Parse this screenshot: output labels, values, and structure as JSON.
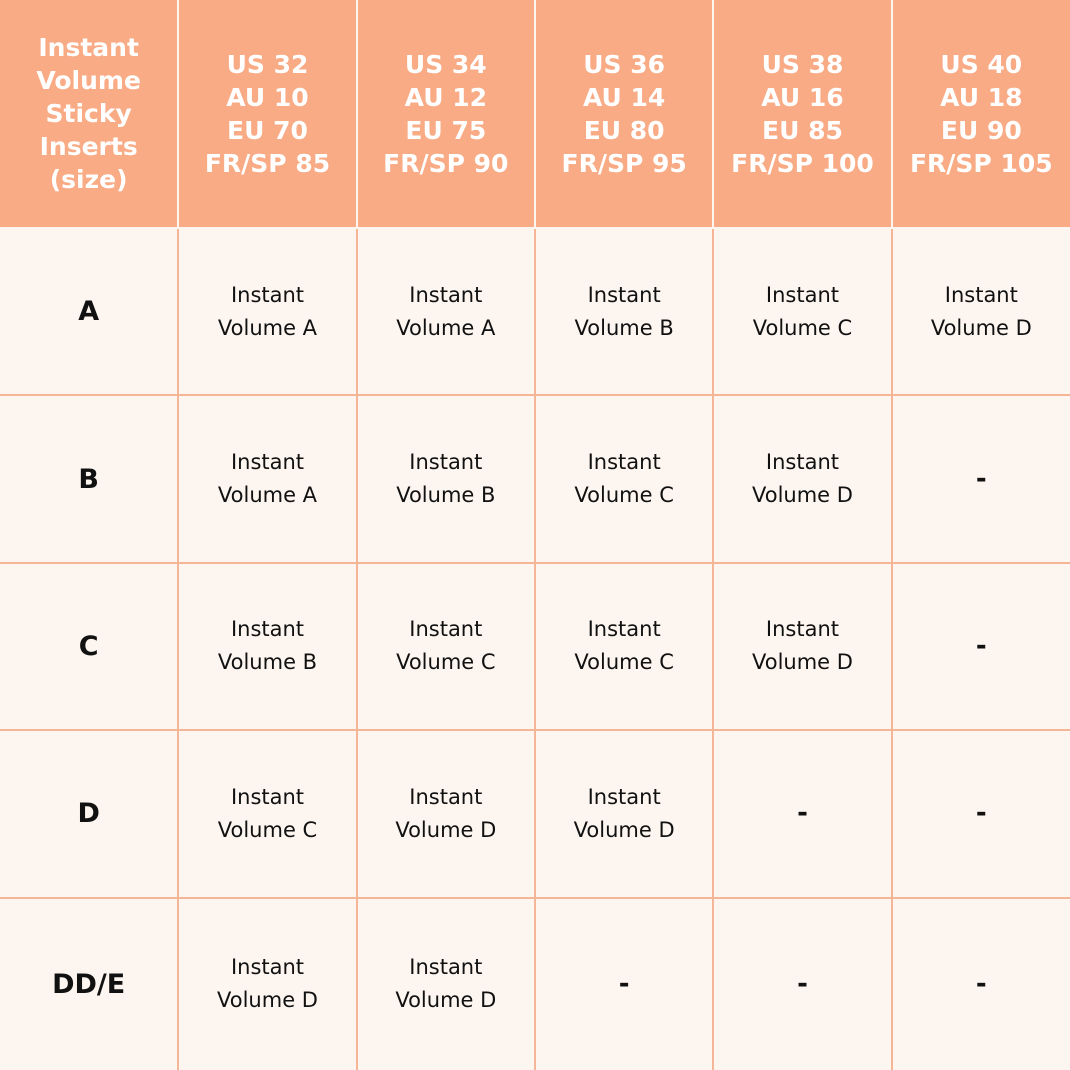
{
  "table": {
    "corner_header": [
      "Instant",
      "Volume",
      "Sticky",
      "Inserts",
      "(size)"
    ],
    "columns": [
      [
        "US 32",
        "AU 10",
        "EU 70",
        "FR/SP 85"
      ],
      [
        "US 34",
        "AU 12",
        "EU 75",
        "FR/SP 90"
      ],
      [
        "US 36",
        "AU 14",
        "EU 80",
        "FR/SP 95"
      ],
      [
        "US 38",
        "AU 16",
        "EU 85",
        "FR/SP 100"
      ],
      [
        "US 40",
        "AU 18",
        "EU 90",
        "FR/SP 105"
      ]
    ],
    "rows": [
      {
        "label": "A",
        "cells": [
          "Instant\nVolume A",
          "Instant\nVolume A",
          "Instant\nVolume B",
          "Instant\nVolume C",
          "Instant\nVolume D"
        ]
      },
      {
        "label": "B",
        "cells": [
          "Instant\nVolume A",
          "Instant\nVolume B",
          "Instant\nVolume C",
          "Instant\nVolume D",
          "-"
        ]
      },
      {
        "label": "C",
        "cells": [
          "Instant\nVolume B",
          "Instant\nVolume C",
          "Instant\nVolume C",
          "Instant\nVolume D",
          "-"
        ]
      },
      {
        "label": "D",
        "cells": [
          "Instant\nVolume C",
          "Instant\nVolume D",
          "Instant\nVolume D",
          "-",
          "-"
        ]
      },
      {
        "label": "DD/E",
        "cells": [
          "Instant\nVolume D",
          "Instant\nVolume D",
          "-",
          "-",
          "-"
        ]
      }
    ]
  },
  "colors": {
    "header_bg": "#f8ab85",
    "body_bg": "#fdf5ef",
    "grid": "#f5b597"
  }
}
